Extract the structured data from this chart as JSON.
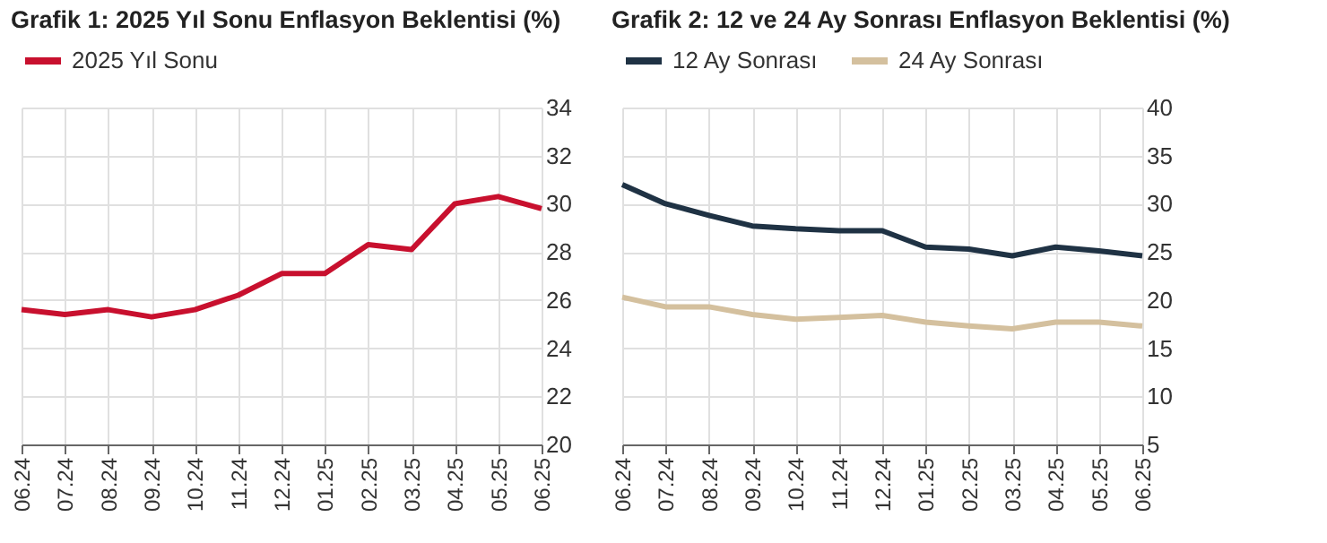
{
  "chart_data": [
    {
      "type": "line",
      "title": "Grafik 1: 2025 Yıl Sonu Enflasyon Beklentisi (%)",
      "categories": [
        "06.24",
        "07.24",
        "08.24",
        "09.24",
        "10.24",
        "11.24",
        "12.24",
        "01.25",
        "02.25",
        "03.25",
        "04.25",
        "05.25",
        "06.25"
      ],
      "series": [
        {
          "name": "2025 Yıl Sonu",
          "color": "#c8102e",
          "values": [
            25.6,
            25.4,
            25.6,
            25.3,
            25.6,
            26.2,
            27.1,
            27.1,
            28.3,
            28.1,
            30.0,
            30.3,
            29.8
          ]
        }
      ],
      "ylim": [
        20,
        34
      ],
      "yticks": [
        20,
        22,
        24,
        26,
        28,
        30,
        32,
        34
      ],
      "grid": true,
      "legend": "top"
    },
    {
      "type": "line",
      "title": "Grafik 2: 12 ve 24 Ay Sonrası Enflasyon Beklentisi (%)",
      "categories": [
        "06.24",
        "07.24",
        "08.24",
        "09.24",
        "10.24",
        "11.24",
        "12.24",
        "01.25",
        "02.25",
        "03.25",
        "04.25",
        "05.25",
        "06.25"
      ],
      "series": [
        {
          "name": "12 Ay Sonrası",
          "color": "#1f3244",
          "values": [
            32.0,
            30.0,
            28.8,
            27.7,
            27.4,
            27.2,
            27.2,
            25.5,
            25.3,
            24.6,
            25.5,
            25.1,
            24.6
          ]
        },
        {
          "name": "24 Ay Sonrası",
          "color": "#d4c09e",
          "values": [
            20.3,
            19.3,
            19.3,
            18.5,
            18.0,
            18.2,
            18.4,
            17.7,
            17.3,
            17.0,
            17.7,
            17.7,
            17.3
          ]
        }
      ],
      "ylim": [
        5,
        40
      ],
      "yticks": [
        5,
        10,
        15,
        20,
        25,
        30,
        35,
        40
      ],
      "grid": true,
      "legend": "top"
    }
  ]
}
